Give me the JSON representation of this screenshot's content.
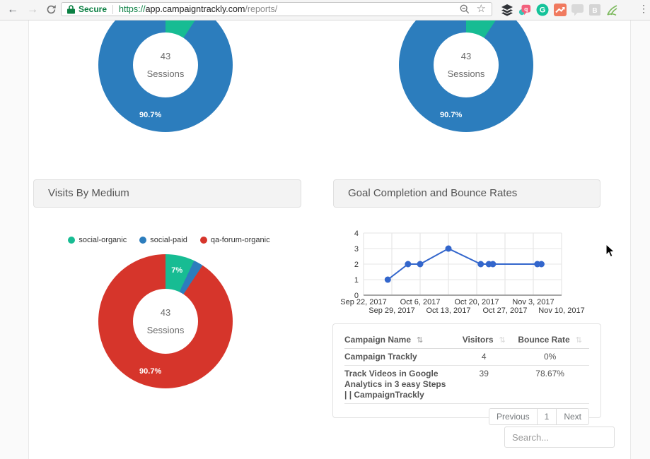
{
  "browser": {
    "secure_label": "Secure",
    "url": {
      "scheme": "https://",
      "domain": "app.campaigntrackly.com",
      "path": "/reports/"
    }
  },
  "sections": {
    "visits_by_medium": "Visits By Medium",
    "goal_completion": "Goal Completion and Bounce Rates"
  },
  "colors": {
    "green": "#17bc93",
    "blue": "#2c7dbd",
    "red": "#d6352b",
    "line_blue": "#3366cc",
    "secure_green": "#0b8043"
  },
  "legend": [
    {
      "label": "social-organic",
      "color": "#17bc93"
    },
    {
      "label": "social-paid",
      "color": "#2c7dbd"
    },
    {
      "label": "qa-forum-organic",
      "color": "#d6352b"
    }
  ],
  "chart_data": [
    {
      "id": "sessions-donut-left",
      "type": "donut",
      "center_value": "43",
      "center_label": "Sessions",
      "slices": [
        {
          "name": "social-organic",
          "pct": 9.3,
          "color": "#17bc93"
        },
        {
          "name": "social-paid",
          "pct": 90.7,
          "color": "#2c7dbd",
          "label": "90.7%"
        }
      ]
    },
    {
      "id": "sessions-donut-right",
      "type": "donut",
      "center_value": "43",
      "center_label": "Sessions",
      "slices": [
        {
          "name": "social-organic",
          "pct": 9.3,
          "color": "#17bc93"
        },
        {
          "name": "social-paid",
          "pct": 90.7,
          "color": "#2c7dbd",
          "label": "90.7%"
        }
      ]
    },
    {
      "id": "visits-by-medium-donut",
      "type": "donut",
      "title": "Visits By Medium",
      "center_value": "43",
      "center_label": "Sessions",
      "slices": [
        {
          "name": "social-organic",
          "pct": 7,
          "color": "#17bc93",
          "label": "7%"
        },
        {
          "name": "social-paid",
          "pct": 2.3,
          "color": "#2c7dbd"
        },
        {
          "name": "qa-forum-organic",
          "pct": 90.7,
          "color": "#d6352b",
          "label": "90.7%"
        }
      ]
    },
    {
      "id": "goal-completion-line",
      "type": "line",
      "title": "Goal Completion and Bounce Rates",
      "color": "#3366cc",
      "ylim": [
        0,
        4
      ],
      "yticks": [
        0,
        1,
        2,
        3,
        4
      ],
      "xticks": [
        "Sep 22, 2017",
        "Sep 29, 2017",
        "Oct 6, 2017",
        "Oct 13, 2017",
        "Oct 20, 2017",
        "Oct 27, 2017",
        "Nov 3, 2017",
        "Nov 10, 2017"
      ],
      "points": [
        {
          "date": "Sep 28, 2017",
          "value": 1
        },
        {
          "date": "Oct 3, 2017",
          "value": 2
        },
        {
          "date": "Oct 6, 2017",
          "value": 2
        },
        {
          "date": "Oct 13, 2017",
          "value": 3
        },
        {
          "date": "Oct 21, 2017",
          "value": 2
        },
        {
          "date": "Oct 23, 2017",
          "value": 2
        },
        {
          "date": "Oct 24, 2017",
          "value": 2
        },
        {
          "date": "Nov 4, 2017",
          "value": 2
        },
        {
          "date": "Nov 5, 2017",
          "value": 2
        }
      ]
    }
  ],
  "table": {
    "headers": [
      {
        "label": "Campaign Name",
        "sort_active": true
      },
      {
        "label": "Visitors",
        "sort_active": false
      },
      {
        "label": "Bounce Rate",
        "sort_active": false
      }
    ],
    "rows": [
      {
        "name": "Campaign Trackly",
        "visitors": "4",
        "bounce_rate": "0%"
      },
      {
        "name": "Track Videos in Google Analytics in 3 easy Steps | | CampaignTrackly",
        "visitors": "39",
        "bounce_rate": "78.67%"
      }
    ]
  },
  "pagination": {
    "previous": "Previous",
    "current_page": "1",
    "next": "Next"
  },
  "search": {
    "placeholder": "Search..."
  }
}
